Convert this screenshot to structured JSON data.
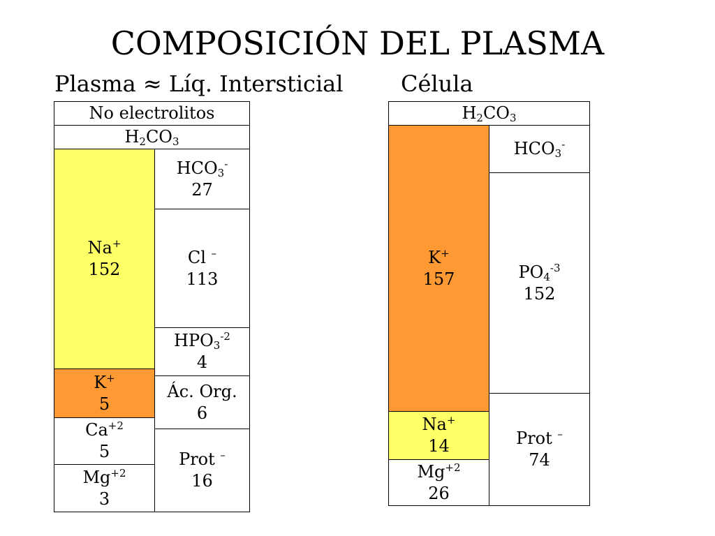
{
  "title": "COMPOSICIÓN DEL PLASMA",
  "colors": {
    "yellow": "#ffff66",
    "orange": "#ff9933",
    "white": "#ffffff"
  },
  "plasma": {
    "heading": {
      "left": "Plasma",
      "symbol": "≈",
      "right": "Líq. Intersticial"
    },
    "no_electrolitos": "No electrolitos",
    "h2co3": {
      "a": "H",
      "sub1": "2",
      "b": "CO",
      "sub2": "3"
    },
    "na": {
      "ion": "Na",
      "charge": "+",
      "value": "152"
    },
    "k": {
      "ion": "K",
      "charge": "+",
      "value": "5"
    },
    "ca": {
      "ion": "Ca",
      "charge": "+2",
      "value": "5"
    },
    "mg": {
      "ion": "Mg",
      "charge": "+2",
      "value": "3"
    },
    "hco3": {
      "ion": "HCO",
      "sub": "3",
      "charge": "-",
      "value": "27"
    },
    "cl": {
      "ion": "Cl",
      "charge": "–",
      "value": "113"
    },
    "hpo3": {
      "ion": "HPO",
      "sub": "3",
      "charge": "-2",
      "value": "4"
    },
    "ac_org": {
      "label": "Ác. Org.",
      "value": "6"
    },
    "prot": {
      "ion": "Prot",
      "charge": "–",
      "value": "16"
    }
  },
  "cell": {
    "heading": "Célula",
    "h2co3": {
      "a": "H",
      "sub1": "2",
      "b": "CO",
      "sub2": "3"
    },
    "k": {
      "ion": "K",
      "charge": "+",
      "value": "157"
    },
    "na": {
      "ion": "Na",
      "charge": "+",
      "value": "14"
    },
    "mg": {
      "ion": "Mg",
      "charge": "+2",
      "value": "26"
    },
    "hco3": {
      "ion": "HCO",
      "sub": "3",
      "charge": "-"
    },
    "po4": {
      "ion": "PO",
      "sub": "4",
      "charge": "-3",
      "value": "152"
    },
    "prot": {
      "ion": "Prot",
      "charge": "–",
      "value": "74"
    }
  }
}
